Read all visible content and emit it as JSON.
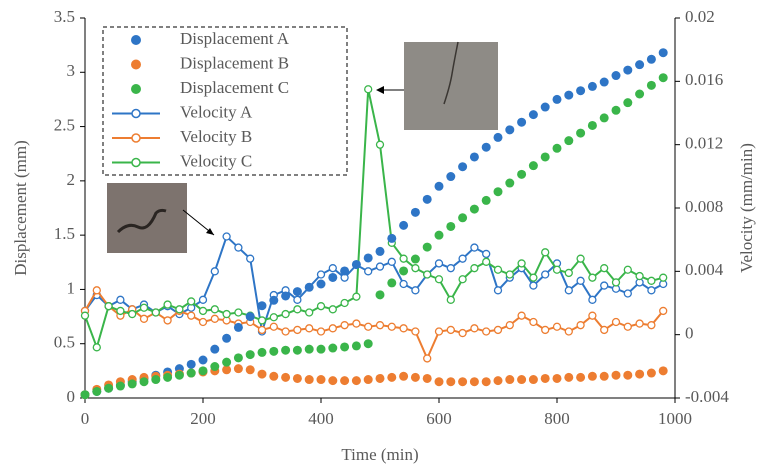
{
  "chart_data": {
    "type": "scatter-line",
    "x_label": "Time (min)",
    "y_label": "Displacement (mm)",
    "y2_label": "Velocity (mm/min)",
    "xlim": [
      0,
      1000
    ],
    "xticks": [
      0,
      200,
      400,
      600,
      800,
      1000
    ],
    "ylim": [
      0,
      3.5
    ],
    "yticks": [
      0,
      0.5,
      1,
      1.5,
      2,
      2.5,
      3,
      3.5
    ],
    "y2lim": [
      -0.004,
      0.02
    ],
    "y2ticks": [
      -0.004,
      0,
      0.004,
      0.008,
      0.012,
      0.016,
      0.02
    ],
    "x": [
      0,
      20,
      40,
      60,
      80,
      100,
      120,
      140,
      160,
      180,
      200,
      220,
      240,
      260,
      280,
      300,
      320,
      340,
      360,
      380,
      400,
      420,
      440,
      460,
      480,
      500,
      520,
      540,
      560,
      580,
      600,
      620,
      640,
      660,
      680,
      700,
      720,
      740,
      760,
      780,
      800,
      820,
      840,
      860,
      880,
      900,
      920,
      940,
      960,
      980
    ],
    "series": [
      {
        "name": "Displacement A",
        "color": "#2e75c6",
        "style": "markers",
        "values": [
          0.03,
          0.06,
          0.09,
          0.12,
          0.15,
          0.18,
          0.21,
          0.24,
          0.27,
          0.31,
          0.35,
          0.45,
          0.55,
          0.65,
          0.75,
          0.85,
          0.9,
          0.94,
          0.98,
          1.02,
          1.05,
          1.11,
          1.17,
          1.23,
          1.29,
          1.35,
          1.47,
          1.59,
          1.71,
          1.83,
          1.95,
          2.04,
          2.13,
          2.22,
          2.31,
          2.4,
          2.47,
          2.54,
          2.61,
          2.68,
          2.75,
          2.79,
          2.83,
          2.87,
          2.91,
          2.97,
          3.02,
          3.07,
          3.12,
          3.18
        ]
      },
      {
        "name": "Displacement B",
        "color": "#ed7d31",
        "style": "markers",
        "values": [
          0.03,
          0.08,
          0.12,
          0.15,
          0.17,
          0.19,
          0.2,
          0.21,
          0.22,
          0.23,
          0.24,
          0.25,
          0.26,
          0.27,
          0.26,
          0.22,
          0.2,
          0.19,
          0.18,
          0.17,
          0.17,
          0.16,
          0.16,
          0.16,
          0.17,
          0.18,
          0.19,
          0.2,
          0.19,
          0.18,
          0.15,
          0.15,
          0.15,
          0.15,
          0.15,
          0.16,
          0.17,
          0.17,
          0.17,
          0.18,
          0.18,
          0.19,
          0.19,
          0.2,
          0.2,
          0.21,
          0.21,
          0.22,
          0.23,
          0.25
        ]
      },
      {
        "name": "Displacement C",
        "color": "#3ab54a",
        "style": "markers",
        "values": [
          0.03,
          0.06,
          0.09,
          0.11,
          0.13,
          0.15,
          0.17,
          0.19,
          0.21,
          0.23,
          0.25,
          0.29,
          0.33,
          0.37,
          0.4,
          0.42,
          0.43,
          0.44,
          0.44,
          0.45,
          0.45,
          0.46,
          0.47,
          0.48,
          0.5,
          0.95,
          1.06,
          1.17,
          1.28,
          1.39,
          1.5,
          1.58,
          1.66,
          1.74,
          1.82,
          1.9,
          1.98,
          2.06,
          2.14,
          2.22,
          2.3,
          2.37,
          2.44,
          2.51,
          2.58,
          2.65,
          2.72,
          2.8,
          2.88,
          2.95
        ]
      },
      {
        "name": "Velocity A",
        "color": "#2e75c6",
        "style": "line-markers",
        "axis": "y2",
        "values": [
          0.0015,
          0.0025,
          0.0018,
          0.0022,
          0.0016,
          0.0019,
          0.0014,
          0.0018,
          0.0013,
          0.0017,
          0.0022,
          0.004,
          0.0062,
          0.0055,
          0.0048,
          0.0002,
          0.0025,
          0.0028,
          0.0022,
          0.003,
          0.0038,
          0.0042,
          0.0036,
          0.0044,
          0.004,
          0.0043,
          0.0046,
          0.0032,
          0.0028,
          0.0038,
          0.0045,
          0.0042,
          0.0048,
          0.0055,
          0.0051,
          0.0028,
          0.0036,
          0.0042,
          0.0031,
          0.0038,
          0.0045,
          0.0028,
          0.0034,
          0.0022,
          0.0031,
          0.0029,
          0.0026,
          0.0033,
          0.0028,
          0.0032
        ]
      },
      {
        "name": "Velocity B",
        "color": "#ed7d31",
        "style": "line-markers",
        "axis": "y2",
        "values": [
          0.0015,
          0.0028,
          0.0018,
          0.0012,
          0.0016,
          0.001,
          0.0014,
          0.0009,
          0.0015,
          0.0012,
          0.0008,
          0.001,
          0.0009,
          0.0007,
          0.0008,
          0.0003,
          0.0005,
          0.0002,
          0.0003,
          0.0004,
          0.0002,
          0.0004,
          0.0006,
          0.0007,
          0.0005,
          0.0006,
          0.0005,
          0.0004,
          0.0002,
          -0.0015,
          0.0002,
          0.0003,
          0.0001,
          0.0004,
          0.0002,
          0.0003,
          0.0006,
          0.0012,
          0.0008,
          0.0003,
          0.0005,
          0.0002,
          0.0006,
          0.0012,
          0.0003,
          0.0008,
          0.0005,
          0.0007,
          0.0006,
          0.0015
        ]
      },
      {
        "name": "Velocity C",
        "color": "#3ab54a",
        "style": "line-markers",
        "axis": "y2",
        "values": [
          0.0012,
          -0.0008,
          0.0018,
          0.0015,
          0.0013,
          0.0017,
          0.0014,
          0.0019,
          0.0016,
          0.0021,
          0.0015,
          0.0016,
          0.0013,
          0.0014,
          0.0012,
          0.0009,
          0.0011,
          0.0013,
          0.0016,
          0.0014,
          0.0018,
          0.0016,
          0.002,
          0.0024,
          0.0155,
          0.012,
          0.0058,
          0.0048,
          0.0042,
          0.0038,
          0.0035,
          0.0022,
          0.0035,
          0.0042,
          0.0046,
          0.0041,
          0.0038,
          0.0045,
          0.0036,
          0.0052,
          0.0041,
          0.0039,
          0.0048,
          0.0036,
          0.0042,
          0.0033,
          0.0041,
          0.0037,
          0.0034,
          0.0036
        ]
      }
    ]
  }
}
